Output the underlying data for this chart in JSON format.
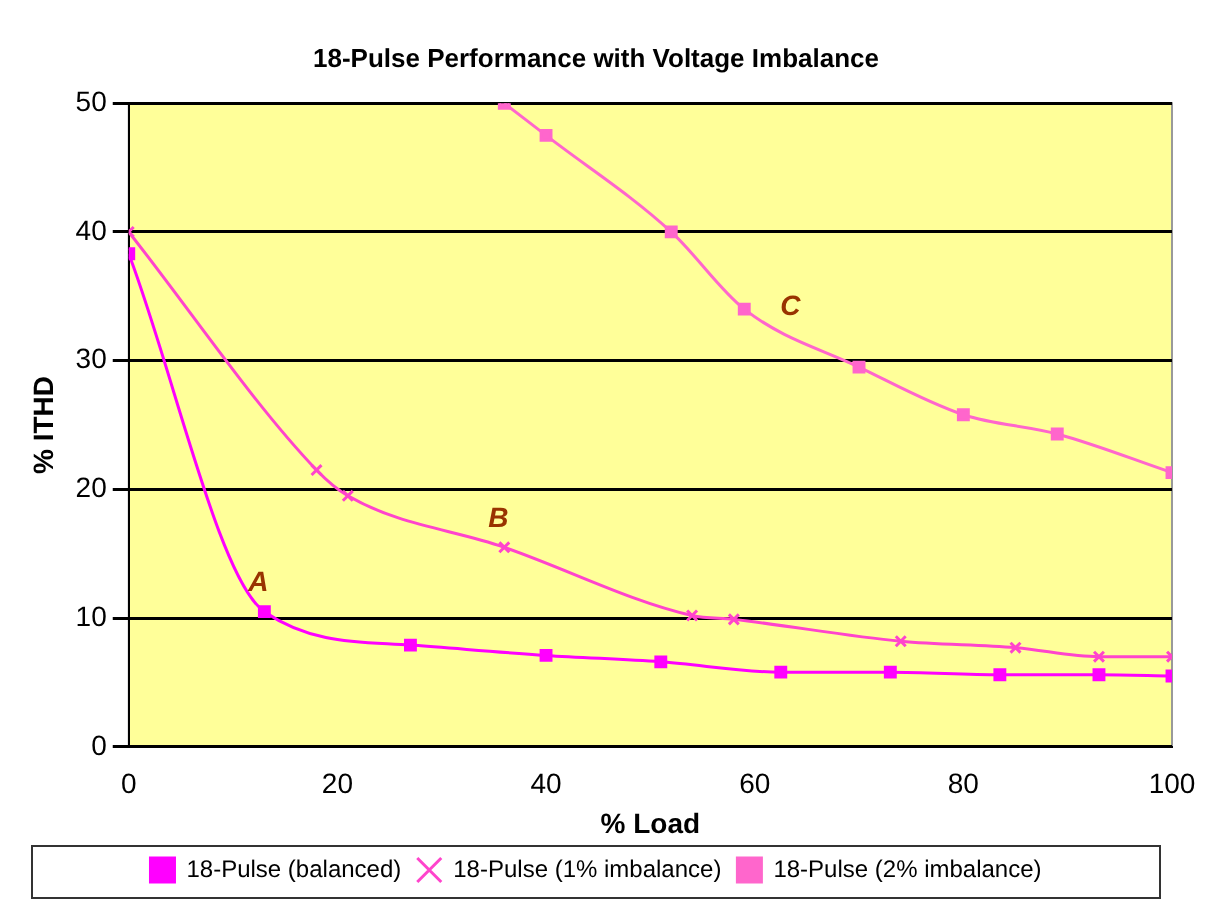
{
  "chart_data": {
    "type": "line",
    "title": "18-Pulse Performance with Voltage Imbalance",
    "xlabel": "% Load",
    "ylabel": "% ITHD",
    "xlim": [
      0,
      100
    ],
    "xticks": [
      0,
      20,
      40,
      60,
      80,
      100
    ],
    "ylim": [
      0,
      50
    ],
    "yticks": [
      0,
      10,
      20,
      30,
      40,
      50
    ],
    "grid": "y",
    "legend": "bottom",
    "line_style": "solid",
    "series": [
      {
        "name": "18-Pulse (balanced)",
        "color": "#ff00ff",
        "marker": "square",
        "x": [
          0,
          13,
          27,
          40,
          51,
          62.5,
          73,
          83.5,
          93,
          100
        ],
        "values": [
          38.3,
          10.5,
          7.9,
          7.1,
          6.6,
          5.8,
          5.8,
          5.6,
          5.6,
          5.5
        ]
      },
      {
        "name": "18-Pulse (1% imbalance)",
        "color": "#ff44cc",
        "marker": "cross",
        "x": [
          0,
          18,
          21,
          36,
          54,
          58,
          74,
          85,
          93,
          100
        ],
        "values": [
          40,
          21.5,
          19.5,
          15.5,
          10.2,
          9.9,
          8.2,
          7.7,
          7,
          7
        ]
      },
      {
        "name": "18-Pulse (2% imbalance)",
        "color": "#ff66cc",
        "marker": "square",
        "x": [
          36,
          40,
          52,
          59,
          70,
          80,
          89,
          100
        ],
        "values": [
          50,
          47.5,
          40,
          34,
          29.5,
          25.8,
          24.3,
          21.3
        ]
      }
    ],
    "annotations": [
      {
        "text": "A",
        "x": 13,
        "y": 10.5
      },
      {
        "text": "B",
        "x": 36,
        "y": 15.5
      },
      {
        "text": "C",
        "x": 64,
        "y": 32
      }
    ]
  }
}
